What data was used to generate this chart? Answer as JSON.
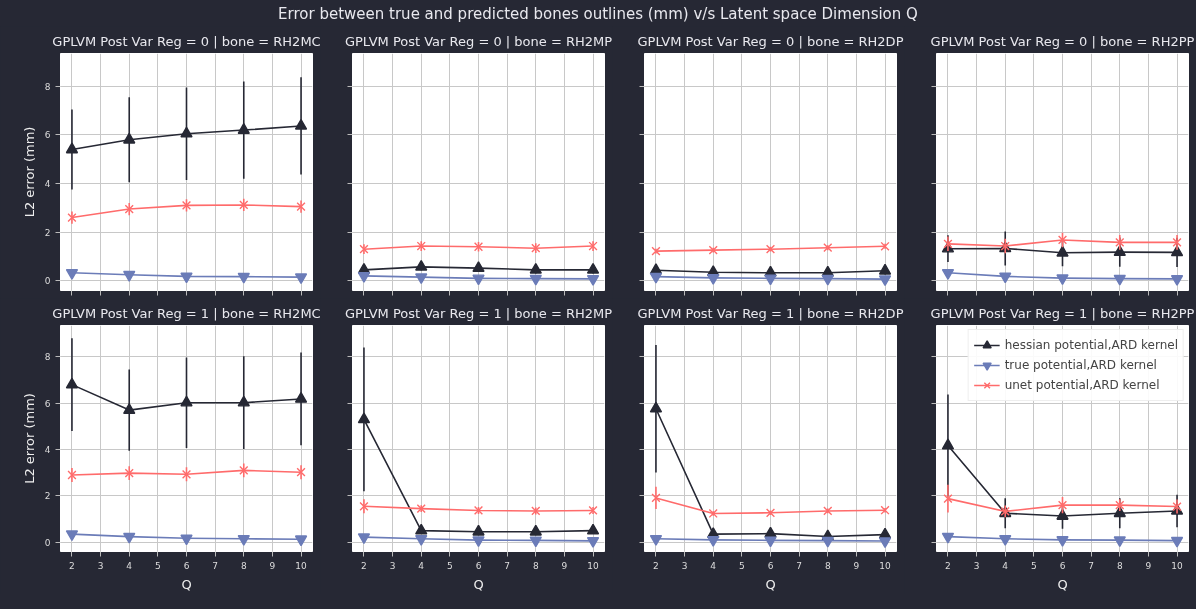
{
  "chart_data": [
    {
      "type": "line",
      "title": "GPLVM Post Var Reg = 0 | bone = RH2MC",
      "ylabel": "L2 error (mm)",
      "annotations": [
        "Error between true and predicted bones outlines (mm) v/s Latent space Dimension Q"
      ],
      "x": [
        2,
        4,
        6,
        8,
        10
      ],
      "xlim": [
        1.6,
        10.4
      ],
      "ylim": [
        -0.4,
        9.35
      ],
      "xticks": [
        2,
        3,
        4,
        5,
        6,
        7,
        8,
        9,
        10
      ],
      "yticks": [
        0,
        2,
        4,
        6,
        8
      ],
      "grid": true,
      "tick_labels": "y",
      "series": [
        {
          "color": "#262834",
          "marker": "triangle",
          "values": [
            5.4,
            5.8,
            6.05,
            6.2,
            6.37
          ],
          "errors": [
            1.65,
            1.75,
            1.9,
            2.0,
            2.0
          ]
        },
        {
          "color": "#6b7cb8",
          "marker": "triangle_down",
          "values": [
            0.33,
            0.25,
            0.18,
            0.17,
            0.15
          ]
        },
        {
          "color": "#ff6b6b",
          "marker": "cross",
          "values": [
            2.6,
            2.95,
            3.1,
            3.12,
            3.05
          ],
          "errors": [
            0.25,
            0.25,
            0.25,
            0.25,
            0.25
          ]
        }
      ]
    },
    {
      "type": "line",
      "title": "GPLVM Post Var Reg = 0 | bone = RH2MP",
      "x": [
        2,
        4,
        6,
        8,
        10
      ],
      "xlim": [
        1.6,
        10.4
      ],
      "ylim": [
        -0.4,
        9.35
      ],
      "xticks": [
        2,
        3,
        4,
        5,
        6,
        7,
        8,
        9,
        10
      ],
      "yticks": [
        0,
        2,
        4,
        6,
        8
      ],
      "grid": true,
      "tick_labels": false,
      "series": [
        {
          "color": "#262834",
          "marker": "triangle",
          "values": [
            0.45,
            0.57,
            0.52,
            0.45,
            0.45
          ],
          "errors": [
            0.15,
            0.15,
            0.15,
            0.15,
            0.15
          ]
        },
        {
          "color": "#6b7cb8",
          "marker": "triangle_down",
          "values": [
            0.2,
            0.15,
            0.1,
            0.09,
            0.08
          ]
        },
        {
          "color": "#ff6b6b",
          "marker": "cross",
          "values": [
            1.3,
            1.43,
            1.4,
            1.34,
            1.43
          ],
          "errors": [
            0.2,
            0.2,
            0.2,
            0.2,
            0.2
          ]
        }
      ]
    },
    {
      "type": "line",
      "title": "GPLVM Post Var Reg = 0 | bone = RH2DP",
      "x": [
        2,
        4,
        6,
        8,
        10
      ],
      "xlim": [
        1.6,
        10.4
      ],
      "ylim": [
        -0.4,
        9.35
      ],
      "xticks": [
        2,
        3,
        4,
        5,
        6,
        7,
        8,
        9,
        10
      ],
      "yticks": [
        0,
        2,
        4,
        6,
        8
      ],
      "grid": true,
      "tick_labels": false,
      "series": [
        {
          "color": "#262834",
          "marker": "triangle",
          "values": [
            0.43,
            0.35,
            0.33,
            0.33,
            0.41
          ],
          "errors": [
            0.1,
            0.1,
            0.1,
            0.1,
            0.15
          ]
        },
        {
          "color": "#6b7cb8",
          "marker": "triangle_down",
          "values": [
            0.17,
            0.12,
            0.1,
            0.09,
            0.07
          ]
        },
        {
          "color": "#ff6b6b",
          "marker": "cross",
          "values": [
            1.22,
            1.26,
            1.3,
            1.36,
            1.42
          ],
          "errors": [
            0.1,
            0.1,
            0.1,
            0.1,
            0.1
          ]
        }
      ]
    },
    {
      "type": "line",
      "title": "GPLVM Post Var Reg = 0 | bone = RH2PP",
      "x": [
        2,
        4,
        6,
        8,
        10
      ],
      "xlim": [
        1.6,
        10.4
      ],
      "ylim": [
        -0.4,
        9.35
      ],
      "xticks": [
        2,
        3,
        4,
        5,
        6,
        7,
        8,
        9,
        10
      ],
      "yticks": [
        0,
        2,
        4,
        6,
        8
      ],
      "grid": true,
      "tick_labels": false,
      "series": [
        {
          "color": "#262834",
          "marker": "triangle",
          "values": [
            1.32,
            1.33,
            1.15,
            1.18,
            1.17
          ],
          "errors": [
            0.55,
            0.7,
            0.55,
            0.6,
            0.6
          ]
        },
        {
          "color": "#6b7cb8",
          "marker": "triangle_down",
          "values": [
            0.33,
            0.18,
            0.11,
            0.09,
            0.08
          ]
        },
        {
          "color": "#ff6b6b",
          "marker": "cross",
          "values": [
            1.52,
            1.43,
            1.68,
            1.58,
            1.58
          ],
          "errors": [
            0.3,
            0.3,
            0.3,
            0.3,
            0.3
          ]
        }
      ]
    },
    {
      "type": "line",
      "title": "GPLVM Post Var Reg = 1 | bone = RH2MC",
      "xlabel": "Q",
      "ylabel": "L2 error (mm)",
      "x": [
        2,
        4,
        6,
        8,
        10
      ],
      "xlim": [
        1.6,
        10.4
      ],
      "ylim": [
        -0.4,
        9.35
      ],
      "xticks": [
        2,
        3,
        4,
        5,
        6,
        7,
        8,
        9,
        10
      ],
      "yticks": [
        0,
        2,
        4,
        6,
        8
      ],
      "grid": true,
      "series": [
        {
          "color": "#262834",
          "marker": "triangle",
          "values": [
            6.8,
            5.7,
            6.02,
            6.02,
            6.18
          ],
          "errors": [
            2.0,
            1.75,
            1.95,
            2.0,
            2.0
          ]
        },
        {
          "color": "#6b7cb8",
          "marker": "triangle_down",
          "values": [
            0.35,
            0.24,
            0.17,
            0.15,
            0.13
          ]
        },
        {
          "color": "#ff6b6b",
          "marker": "cross",
          "values": [
            2.9,
            2.98,
            2.93,
            3.1,
            3.02
          ],
          "errors": [
            0.3,
            0.3,
            0.3,
            0.3,
            0.3
          ]
        }
      ]
    },
    {
      "type": "line",
      "title": "GPLVM Post Var Reg = 1 | bone = RH2MP",
      "xlabel": "Q",
      "x": [
        2,
        4,
        6,
        8,
        10
      ],
      "xlim": [
        1.6,
        10.4
      ],
      "ylim": [
        -0.4,
        9.35
      ],
      "xticks": [
        2,
        3,
        4,
        5,
        6,
        7,
        8,
        9,
        10
      ],
      "yticks": [
        0,
        2,
        4,
        6,
        8
      ],
      "grid": true,
      "tick_labels": "x",
      "series": [
        {
          "color": "#262834",
          "marker": "triangle",
          "values": [
            5.3,
            0.5,
            0.45,
            0.45,
            0.5
          ],
          "errors": [
            3.1,
            0.15,
            0.15,
            0.15,
            0.15
          ]
        },
        {
          "color": "#6b7cb8",
          "marker": "triangle_down",
          "values": [
            0.22,
            0.15,
            0.09,
            0.08,
            0.06
          ]
        },
        {
          "color": "#ff6b6b",
          "marker": "cross",
          "values": [
            1.55,
            1.45,
            1.37,
            1.35,
            1.37
          ],
          "errors": [
            0.3,
            0.15,
            0.15,
            0.15,
            0.15
          ]
        }
      ]
    },
    {
      "type": "line",
      "title": "GPLVM Post Var Reg = 1 | bone = RH2DP",
      "xlabel": "Q",
      "x": [
        2,
        4,
        6,
        8,
        10
      ],
      "xlim": [
        1.6,
        10.4
      ],
      "ylim": [
        -0.4,
        9.35
      ],
      "xticks": [
        2,
        3,
        4,
        5,
        6,
        7,
        8,
        9,
        10
      ],
      "yticks": [
        0,
        2,
        4,
        6,
        8
      ],
      "grid": true,
      "tick_labels": "x",
      "series": [
        {
          "color": "#262834",
          "marker": "triangle",
          "values": [
            5.76,
            0.35,
            0.37,
            0.25,
            0.33
          ],
          "errors": [
            2.75,
            0.1,
            0.1,
            0.1,
            0.15
          ]
        },
        {
          "color": "#6b7cb8",
          "marker": "triangle_down",
          "values": [
            0.15,
            0.1,
            0.08,
            0.07,
            0.05
          ]
        },
        {
          "color": "#ff6b6b",
          "marker": "cross",
          "values": [
            1.91,
            1.24,
            1.27,
            1.35,
            1.38
          ],
          "errors": [
            0.48,
            0.1,
            0.1,
            0.1,
            0.1
          ]
        }
      ]
    },
    {
      "type": "line",
      "title": "GPLVM Post Var Reg = 1 | bone = RH2PP",
      "xlabel": "Q",
      "x": [
        2,
        4,
        6,
        8,
        10
      ],
      "xlim": [
        1.6,
        10.4
      ],
      "ylim": [
        -0.4,
        9.35
      ],
      "xticks": [
        2,
        3,
        4,
        5,
        6,
        7,
        8,
        9,
        10
      ],
      "yticks": [
        0,
        2,
        4,
        6,
        8
      ],
      "grid": true,
      "tick_labels": "x",
      "legend": "top right",
      "series": [
        {
          "name": "hessian potential,ARD kernel",
          "color": "#262834",
          "marker": "triangle",
          "values": [
            4.17,
            1.25,
            1.13,
            1.25,
            1.35
          ],
          "errors": [
            2.2,
            0.65,
            0.55,
            0.65,
            0.7
          ]
        },
        {
          "name": "true potential,ARD kernel",
          "color": "#6b7cb8",
          "marker": "triangle_down",
          "values": [
            0.24,
            0.15,
            0.1,
            0.09,
            0.07
          ]
        },
        {
          "name": "unet potential,ARD kernel",
          "color": "#ff6b6b",
          "marker": "cross",
          "values": [
            1.88,
            1.33,
            1.6,
            1.6,
            1.54
          ],
          "errors": [
            0.6,
            0.25,
            0.35,
            0.25,
            0.3
          ]
        }
      ]
    }
  ]
}
